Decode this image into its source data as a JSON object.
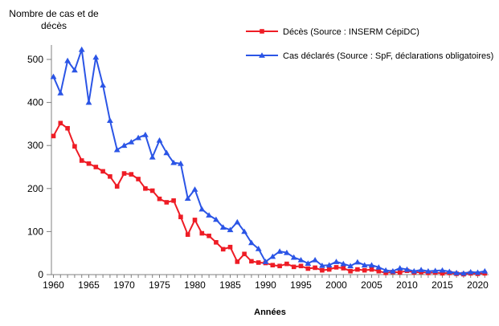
{
  "chart_data": {
    "type": "line",
    "title": "Nombre de cas et de décès",
    "title_lines": [
      "Nombre de cas et de",
      "décès"
    ],
    "xlabel": "Années",
    "x_start": 1960,
    "x_end": 2021,
    "ylim": [
      0,
      525
    ],
    "yticks": [
      0,
      100,
      200,
      300,
      400,
      500
    ],
    "xticks": [
      1960,
      1965,
      1970,
      1975,
      1980,
      1985,
      1990,
      1995,
      2000,
      2005,
      2010,
      2015,
      2020
    ],
    "grid": false,
    "legend_position": "top-right",
    "axis_color": "#808080",
    "text_color": "#000000",
    "series": [
      {
        "name": "Décès (Source : INSERM CépiDC)",
        "color": "#ee1c25",
        "marker": "square",
        "values": [
          322,
          352,
          340,
          298,
          265,
          258,
          250,
          240,
          228,
          205,
          235,
          233,
          222,
          200,
          195,
          176,
          168,
          172,
          134,
          93,
          127,
          96,
          90,
          75,
          59,
          64,
          30,
          48,
          31,
          28,
          27,
          22,
          20,
          25,
          18,
          20,
          14,
          16,
          10,
          12,
          17,
          15,
          8,
          12,
          10,
          12,
          8,
          4,
          6,
          5,
          9,
          5,
          6,
          4,
          5,
          3,
          4,
          2,
          1,
          3,
          2,
          3
        ]
      },
      {
        "name": "Cas déclarés (Source : SpF, déclarations obligatoires)",
        "color": "#2b55e6",
        "marker": "triangle",
        "values": [
          460,
          422,
          497,
          475,
          523,
          400,
          505,
          440,
          358,
          290,
          300,
          308,
          318,
          325,
          273,
          312,
          283,
          260,
          258,
          177,
          198,
          152,
          138,
          128,
          110,
          104,
          122,
          100,
          74,
          60,
          30,
          42,
          54,
          51,
          40,
          34,
          26,
          34,
          21,
          22,
          30,
          25,
          20,
          29,
          22,
          22,
          17,
          10,
          8,
          15,
          12,
          8,
          11,
          8,
          9,
          10,
          7,
          4,
          3,
          6,
          5,
          8
        ]
      }
    ]
  }
}
